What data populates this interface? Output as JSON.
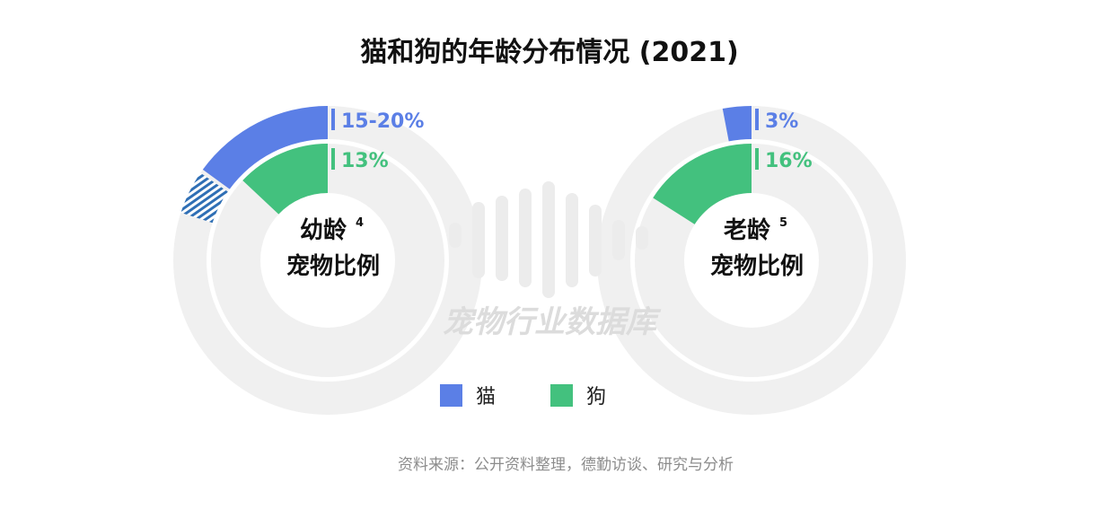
{
  "title": "猫和狗的年龄分布情况 (2021)",
  "watermark": "宠物行业数据库",
  "source": "资料来源：公开资料整理，德勤访谈、研究与分析",
  "colors": {
    "cat": "#5b7fe6",
    "dog": "#43c17e",
    "track": "#f0f0f0",
    "label_bar": "#5b7fe6",
    "hatch": "#2f6fb5"
  },
  "legend": [
    {
      "label": "猫",
      "color": "#5b7fe6",
      "icon": "square-swatch"
    },
    {
      "label": "狗",
      "color": "#43c17e",
      "icon": "square-swatch"
    }
  ],
  "chart_data": [
    {
      "type": "donut",
      "center_label": {
        "line1": "幼龄",
        "note": "4",
        "line2": "宠物比例"
      },
      "series": [
        {
          "name": "猫",
          "value_label": "15-20%",
          "value_low": 15,
          "value_high": 20
        },
        {
          "name": "狗",
          "value_label": "13%",
          "value": 13
        }
      ]
    },
    {
      "type": "donut",
      "center_label": {
        "line1": "老龄",
        "note": "5",
        "line2": "宠物比例"
      },
      "series": [
        {
          "name": "猫",
          "value_label": "3%",
          "value": 3
        },
        {
          "name": "狗",
          "value_label": "16%",
          "value": 16
        }
      ]
    }
  ]
}
